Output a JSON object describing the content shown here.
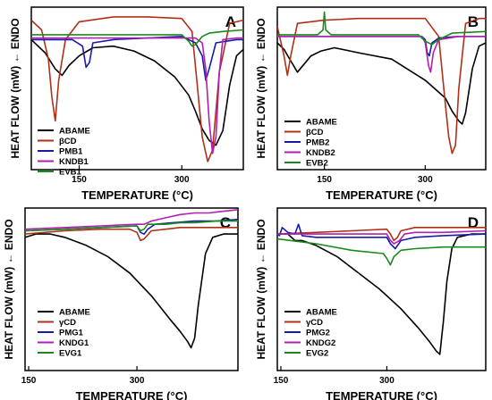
{
  "chart_data": [
    {
      "panel": "A",
      "type": "line",
      "xlabel": "TEMPERATURE (°C)",
      "ylabel": "HEAT FLOW (mW) ← ENDO",
      "xlim": [
        80,
        390
      ],
      "ylim": [
        0,
        100
      ],
      "xticks": [
        150,
        300
      ],
      "grid": false,
      "legend_position": "bottom-left",
      "series": [
        {
          "name": "ABAME",
          "color": "#000000",
          "x": [
            80,
            100,
            115,
            125,
            135,
            150,
            170,
            200,
            230,
            260,
            290,
            310,
            320,
            330,
            340,
            350,
            360,
            370,
            380,
            390
          ],
          "y": [
            80,
            72,
            62,
            58,
            64,
            70,
            75,
            76,
            73,
            67,
            57,
            46,
            36,
            25,
            18,
            15,
            24,
            52,
            70,
            74
          ]
        },
        {
          "name": "βCD",
          "color": "#b03018",
          "x": [
            80,
            95,
            105,
            110,
            115,
            120,
            130,
            150,
            200,
            250,
            300,
            315,
            322,
            330,
            338,
            345,
            355,
            370,
            390
          ],
          "y": [
            92,
            86,
            68,
            45,
            30,
            55,
            80,
            91,
            94,
            94,
            93,
            85,
            55,
            20,
            5,
            12,
            60,
            90,
            92
          ]
        },
        {
          "name": "PMB1",
          "color": "#1a1aa8",
          "x": [
            80,
            140,
            155,
            160,
            165,
            170,
            200,
            250,
            300,
            320,
            330,
            335,
            340,
            350,
            380,
            390
          ],
          "y": [
            80,
            80,
            76,
            63,
            66,
            78,
            80,
            81,
            82,
            78,
            70,
            55,
            62,
            78,
            80,
            80
          ]
        },
        {
          "name": "KNDB1",
          "color": "#b020b0",
          "x": [
            80,
            150,
            200,
            250,
            300,
            320,
            330,
            335,
            340,
            345,
            350,
            355,
            360,
            380,
            390
          ],
          "y": [
            81,
            81,
            81,
            81,
            81,
            81,
            78,
            62,
            30,
            10,
            20,
            60,
            80,
            81,
            81
          ]
        },
        {
          "name": "EVB1",
          "color": "#1a8a1a",
          "x": [
            80,
            150,
            200,
            250,
            300,
            310,
            315,
            320,
            330,
            340,
            360,
            390
          ],
          "y": [
            83,
            83,
            83,
            83,
            83,
            79,
            76,
            77,
            82,
            84,
            85,
            86
          ]
        }
      ]
    },
    {
      "panel": "B",
      "type": "line",
      "xlabel": "TEMPERATURE (°C)",
      "ylabel": "HEAT FLOW (mW) ← ENDO",
      "xlim": [
        80,
        390
      ],
      "ylim": [
        0,
        100
      ],
      "xticks": [
        150,
        300
      ],
      "grid": false,
      "legend_position": "bottom-left",
      "series": [
        {
          "name": "ABAME",
          "color": "#000000",
          "x": [
            80,
            90,
            100,
            110,
            120,
            130,
            145,
            165,
            200,
            250,
            300,
            330,
            340,
            350,
            355,
            360,
            370,
            380,
            390
          ],
          "y": [
            78,
            74,
            67,
            60,
            65,
            70,
            73,
            75,
            72,
            68,
            55,
            44,
            36,
            30,
            28,
            35,
            62,
            76,
            78
          ]
        },
        {
          "name": "βCD",
          "color": "#b03018",
          "x": [
            80,
            90,
            95,
            100,
            110,
            150,
            200,
            250,
            300,
            320,
            330,
            335,
            340,
            345,
            350,
            360,
            380,
            390
          ],
          "y": [
            88,
            70,
            58,
            70,
            90,
            92,
            93,
            93,
            93,
            82,
            40,
            20,
            10,
            15,
            50,
            90,
            93,
            93
          ]
        },
        {
          "name": "PMB2",
          "color": "#1a1aa8",
          "x": [
            80,
            150,
            200,
            250,
            295,
            300,
            303,
            306,
            310,
            320,
            350,
            390
          ],
          "y": [
            82,
            82,
            82,
            82,
            82,
            80,
            72,
            70,
            78,
            81,
            82,
            82
          ]
        },
        {
          "name": "KNDB2",
          "color": "#b020b0",
          "x": [
            80,
            150,
            200,
            250,
            295,
            300,
            305,
            308,
            312,
            320,
            350,
            390
          ],
          "y": [
            82,
            82,
            82,
            82,
            82,
            78,
            64,
            60,
            72,
            80,
            82,
            82
          ]
        },
        {
          "name": "EVB2",
          "color": "#1a8a1a",
          "x": [
            80,
            140,
            148,
            150,
            152,
            160,
            200,
            250,
            290,
            300,
            310,
            320,
            340,
            390
          ],
          "y": [
            83,
            83,
            86,
            97,
            86,
            83,
            83,
            83,
            83,
            79,
            77,
            80,
            84,
            85
          ]
        }
      ]
    },
    {
      "panel": "C",
      "type": "line",
      "xlabel": "TEMPERATURE (°C)",
      "ylabel": "HEAT FLOW (mW) ← ENDO",
      "xlim": [
        145,
        440
      ],
      "ylim": [
        0,
        100
      ],
      "xticks": [
        150,
        300
      ],
      "grid": false,
      "legend_position": "bottom-left",
      "series": [
        {
          "name": "ABAME",
          "color": "#000000",
          "x": [
            145,
            160,
            180,
            200,
            230,
            260,
            290,
            320,
            345,
            360,
            370,
            375,
            380,
            385,
            395,
            405,
            420,
            440
          ],
          "y": [
            82,
            84,
            84,
            82,
            77,
            70,
            60,
            46,
            32,
            24,
            18,
            14,
            20,
            40,
            72,
            82,
            84,
            84
          ]
        },
        {
          "name": "γCD",
          "color": "#b03018",
          "x": [
            145,
            200,
            250,
            290,
            300,
            305,
            310,
            320,
            340,
            360,
            380,
            410,
            440
          ],
          "y": [
            84,
            86,
            87,
            87,
            85,
            80,
            81,
            86,
            87,
            88,
            88,
            88,
            88
          ]
        },
        {
          "name": "PMG1",
          "color": "#1a1aa8",
          "x": [
            145,
            200,
            250,
            300,
            305,
            310,
            315,
            325,
            350,
            380,
            410,
            440
          ],
          "y": [
            86,
            87,
            88,
            89,
            85,
            84,
            87,
            90,
            91,
            92,
            92,
            93
          ]
        },
        {
          "name": "KNDG1",
          "color": "#b020b0",
          "x": [
            145,
            200,
            250,
            300,
            310,
            320,
            340,
            360,
            380,
            400,
            420,
            440
          ],
          "y": [
            87,
            88,
            89,
            90,
            90,
            92,
            94,
            96,
            97,
            97,
            98,
            99
          ]
        },
        {
          "name": "EVG1",
          "color": "#1a8a1a",
          "x": [
            145,
            200,
            250,
            300,
            305,
            310,
            315,
            320,
            340,
            360,
            380,
            410,
            440
          ],
          "y": [
            86,
            87,
            88,
            89,
            86,
            87,
            90,
            90,
            90,
            91,
            91,
            92,
            92
          ]
        }
      ]
    },
    {
      "panel": "D",
      "type": "line",
      "xlabel": "TEMPERATURE (°C)",
      "ylabel": "HEAT FLOW (mW) ← ENDO",
      "xlim": [
        145,
        440
      ],
      "ylim": [
        0,
        100
      ],
      "xticks": [
        150,
        300
      ],
      "grid": false,
      "legend_position": "bottom-left",
      "series": [
        {
          "name": "ABAME",
          "color": "#000000",
          "x": [
            145,
            160,
            170,
            180,
            200,
            230,
            260,
            290,
            320,
            345,
            360,
            370,
            375,
            380,
            385,
            392,
            400,
            420,
            440
          ],
          "y": [
            84,
            84,
            80,
            80,
            77,
            70,
            60,
            50,
            38,
            26,
            18,
            12,
            10,
            30,
            55,
            75,
            82,
            84,
            84
          ]
        },
        {
          "name": "γCD",
          "color": "#b03018",
          "x": [
            145,
            200,
            250,
            300,
            305,
            310,
            315,
            320,
            340,
            380,
            420,
            440
          ],
          "y": [
            84,
            85,
            86,
            87,
            84,
            80,
            82,
            86,
            88,
            88,
            88,
            88
          ]
        },
        {
          "name": "PMG2",
          "color": "#1a1aa8",
          "x": [
            145,
            148,
            152,
            160,
            170,
            175,
            180,
            200,
            250,
            300,
            305,
            312,
            320,
            340,
            380,
            440
          ],
          "y": [
            84,
            83,
            88,
            85,
            84,
            90,
            83,
            82,
            82,
            82,
            78,
            75,
            80,
            82,
            83,
            84
          ]
        },
        {
          "name": "KNDG2",
          "color": "#b020b0",
          "x": [
            145,
            200,
            250,
            300,
            305,
            310,
            318,
            325,
            340,
            380,
            440
          ],
          "y": [
            84,
            84,
            84,
            84,
            80,
            78,
            80,
            84,
            85,
            85,
            86
          ]
        },
        {
          "name": "EVG2",
          "color": "#1a8a1a",
          "x": [
            145,
            200,
            250,
            295,
            300,
            305,
            310,
            320,
            340,
            380,
            440
          ],
          "y": [
            81,
            78,
            74,
            72,
            69,
            65,
            70,
            74,
            75,
            76,
            76
          ]
        }
      ]
    }
  ]
}
